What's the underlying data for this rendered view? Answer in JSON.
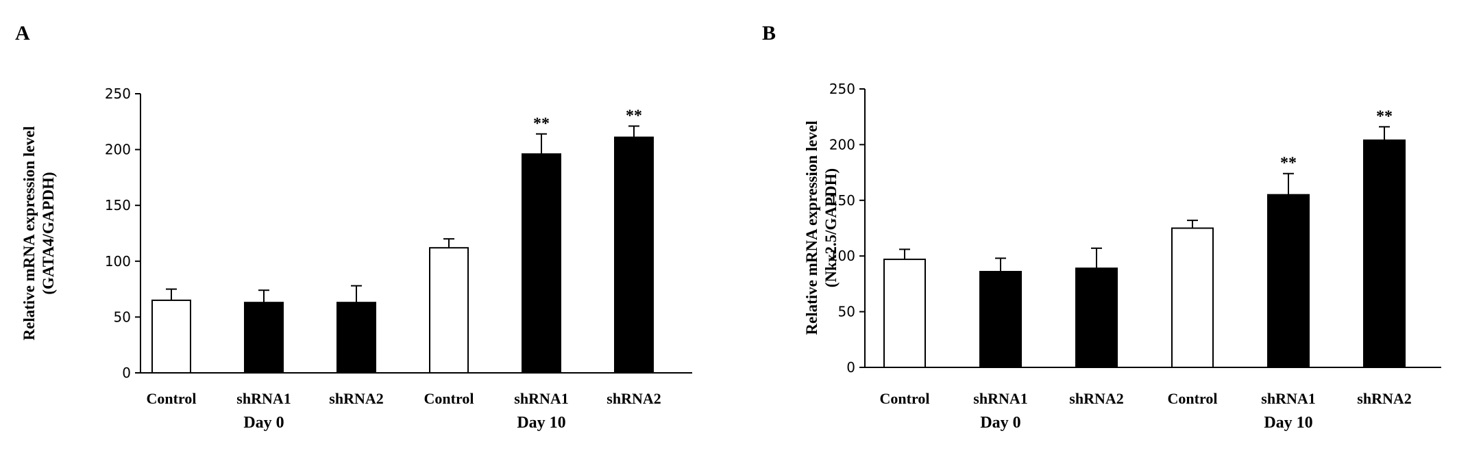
{
  "chart_data": [
    {
      "type": "bar",
      "panel_label": "A",
      "ylabel_lines": [
        "Relative mRNA expression level",
        "(GATA4/GAPDH)"
      ],
      "ylim": [
        0,
        250
      ],
      "yticks": [
        0,
        50,
        100,
        150,
        200,
        250
      ],
      "categories": [
        "Control",
        "shRNA1",
        "shRNA2",
        "Control",
        "shRNA1",
        "shRNA2"
      ],
      "groups": [
        {
          "label": "Day 0",
          "indices": [
            0,
            1,
            2
          ]
        },
        {
          "label": "Day 10",
          "indices": [
            3,
            4,
            5
          ]
        }
      ],
      "values": [
        65,
        63,
        63,
        112,
        196,
        211
      ],
      "errors": [
        10,
        11,
        15,
        8,
        18,
        10
      ],
      "fill": [
        "white",
        "black",
        "black",
        "white",
        "black",
        "black"
      ],
      "annotations": [
        "",
        "",
        "",
        "",
        "**",
        "**"
      ],
      "grid": false,
      "legend": "none"
    },
    {
      "type": "bar",
      "panel_label": "B",
      "ylabel_lines": [
        "Relative mRNA expression level",
        "(Nkx2.5/GAPDH)"
      ],
      "ylim": [
        0,
        250
      ],
      "yticks": [
        0,
        50,
        100,
        150,
        200,
        250
      ],
      "categories": [
        "Control",
        "shRNA1",
        "shRNA2",
        "Control",
        "shRNA1",
        "shRNA2"
      ],
      "groups": [
        {
          "label": "Day 0",
          "indices": [
            0,
            1,
            2
          ]
        },
        {
          "label": "Day 10",
          "indices": [
            3,
            4,
            5
          ]
        }
      ],
      "values": [
        97,
        86,
        89,
        125,
        155,
        204
      ],
      "errors": [
        9,
        12,
        18,
        7,
        19,
        12
      ],
      "fill": [
        "white",
        "black",
        "black",
        "white",
        "black",
        "black"
      ],
      "annotations": [
        "",
        "",
        "",
        "",
        "**",
        "**"
      ],
      "grid": false,
      "legend": "none"
    }
  ],
  "colors": {
    "dark_bar": "#000000",
    "light_bar": "#ffffff",
    "axis": "#000000"
  }
}
